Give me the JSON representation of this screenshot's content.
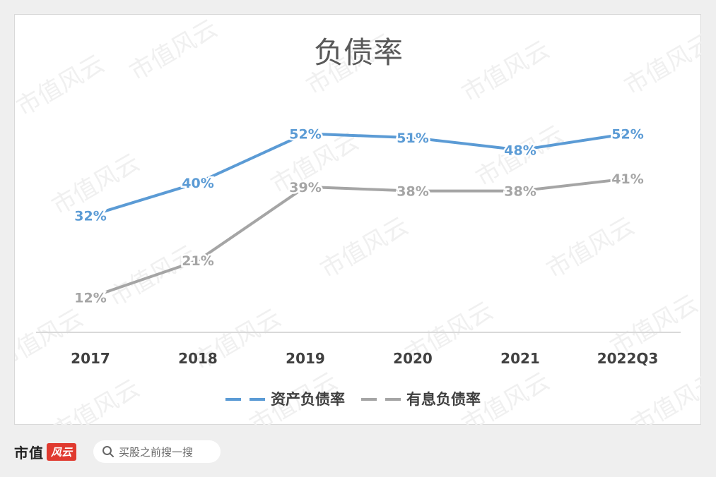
{
  "chart_data": {
    "type": "line",
    "title": "负债率",
    "categories": [
      "2017",
      "2018",
      "2019",
      "2020",
      "2021",
      "2022Q3"
    ],
    "series": [
      {
        "name": "资产负债率",
        "values": [
          32,
          40,
          52,
          51,
          48,
          52
        ],
        "labels": [
          "32%",
          "40%",
          "52%",
          "51%",
          "48%",
          "52%"
        ],
        "color": "#5b9bd5"
      },
      {
        "name": "有息负债率",
        "values": [
          12,
          21,
          39,
          38,
          38,
          41
        ],
        "labels": [
          "12%",
          "21%",
          "39%",
          "38%",
          "38%",
          "41%"
        ],
        "color": "#a5a5a5"
      }
    ],
    "ylim": [
      0,
      70
    ],
    "grid": false,
    "legend_position": "bottom"
  },
  "watermark": "市值风云",
  "footer": {
    "brand": "市值",
    "brand_seal": "风云",
    "search_placeholder": "买股之前搜一搜"
  }
}
